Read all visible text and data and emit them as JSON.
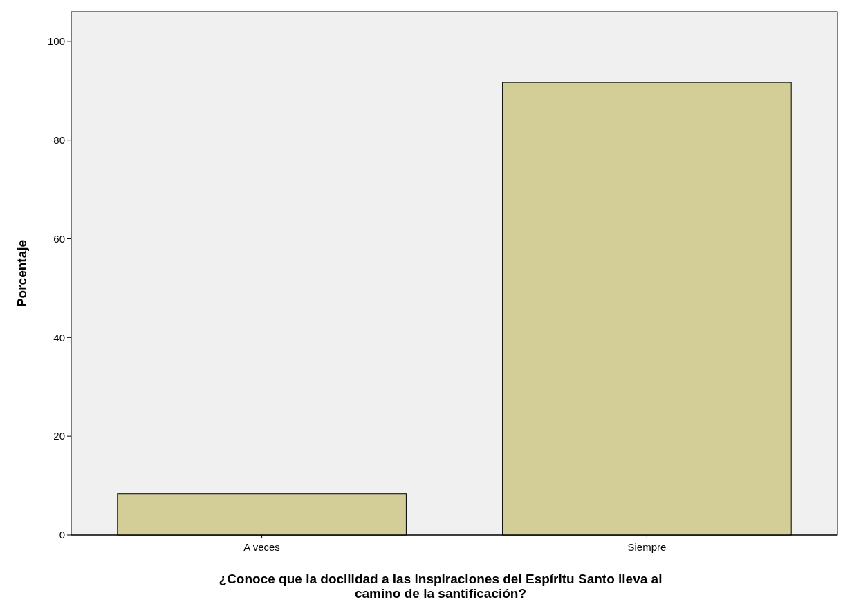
{
  "chart_data": {
    "type": "bar",
    "xlabel": "¿Conoce que la docilidad a las inspiraciones del Espíritu Santo lleva al camino de la santificación?",
    "ylabel": "Porcentaje",
    "categories": [
      "A veces",
      "Siempre"
    ],
    "values": [
      8.3,
      91.7
    ],
    "color": "#d3ce97",
    "ylim": [
      0,
      106
    ],
    "yticks": [
      0,
      20,
      40,
      60,
      80,
      100
    ],
    "grid": false
  }
}
